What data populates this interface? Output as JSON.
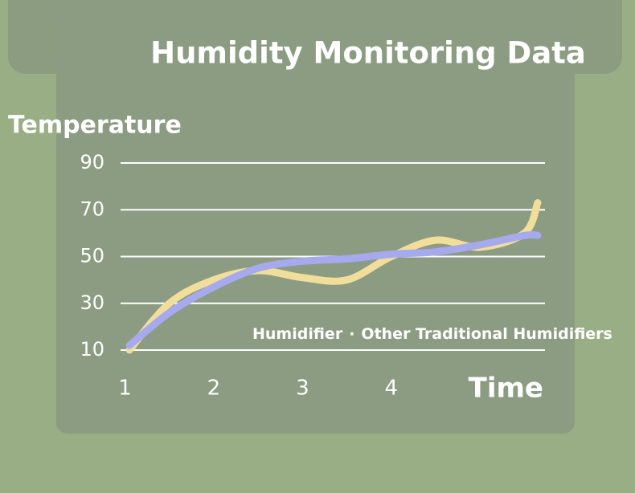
{
  "chart_data": {
    "type": "line",
    "title": "Humidity Monitoring Data",
    "y_label": "Temperature",
    "x_label": "Time",
    "x": [
      1.05,
      1.5,
      2,
      2.5,
      3,
      3.5,
      4,
      4.5,
      5,
      5.5,
      5.65
    ],
    "series": [
      {
        "name": "Humidifier",
        "color": "#f0de9a",
        "values": [
          10,
          30,
          40,
          44,
          41,
          40,
          50,
          57,
          54,
          60,
          73
        ]
      },
      {
        "name": "Other Traditional Humidifiers",
        "color": "#a7a9ee",
        "values": [
          12,
          26,
          37,
          45,
          48,
          49,
          51,
          52,
          55,
          59,
          59
        ]
      }
    ],
    "legend_separator": "·",
    "xlim": [
      0.95,
      5.75
    ],
    "xticks": [
      1,
      2,
      3,
      4
    ],
    "ylim": [
      10,
      90
    ],
    "yticks": [
      10,
      30,
      50,
      70,
      90
    ],
    "grid": true
  }
}
